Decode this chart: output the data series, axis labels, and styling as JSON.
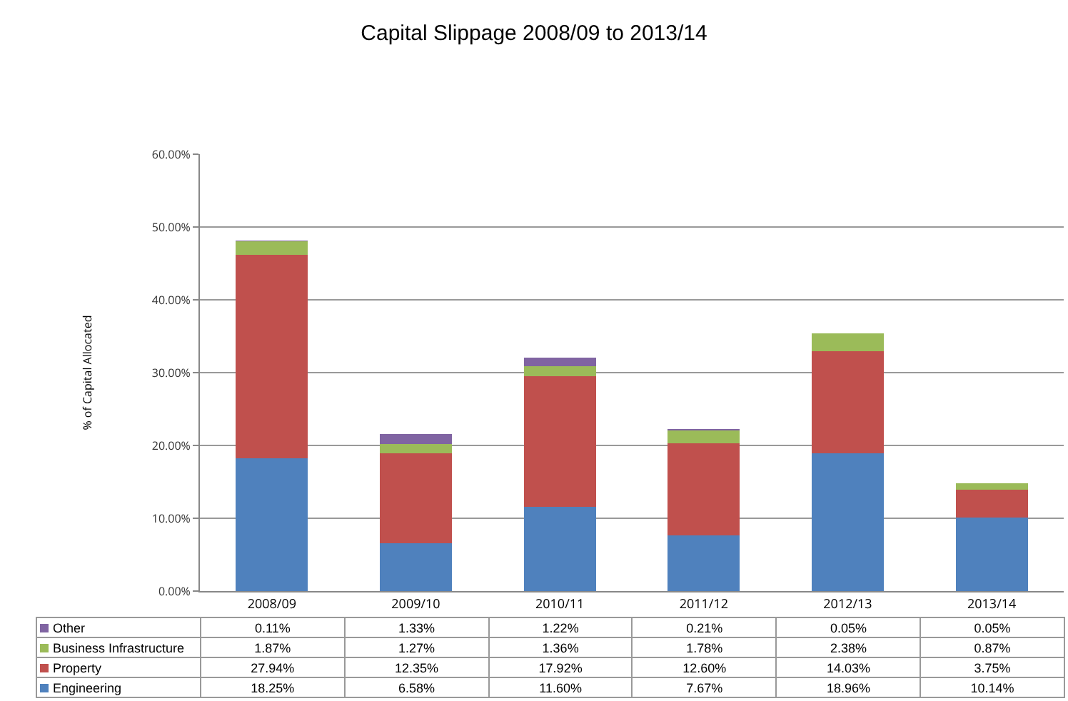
{
  "chart_data": {
    "type": "bar",
    "title": "Capital Slippage 2008/09 to 2013/14",
    "ylabel": "% of Capital Allocated",
    "categories": [
      "2008/09",
      "2009/10",
      "2010/11",
      "2011/12",
      "2012/13",
      "2013/14"
    ],
    "stacked": true,
    "series": [
      {
        "name": "Engineering",
        "color": "#4f81bd",
        "values": [
          18.25,
          6.58,
          11.6,
          7.67,
          18.96,
          10.14
        ],
        "value_labels": [
          "18.25%",
          "6.58%",
          "11.60%",
          "7.67%",
          "18.96%",
          "10.14%"
        ]
      },
      {
        "name": "Property",
        "color": "#c0504d",
        "values": [
          27.94,
          12.35,
          17.92,
          12.6,
          14.03,
          3.75
        ],
        "value_labels": [
          "27.94%",
          "12.35%",
          "17.92%",
          "12.60%",
          "14.03%",
          "3.75%"
        ]
      },
      {
        "name": "Business Infrastructure",
        "color": "#9bbb59",
        "values": [
          1.87,
          1.27,
          1.36,
          1.78,
          2.38,
          0.87
        ],
        "value_labels": [
          "1.87%",
          "1.27%",
          "1.36%",
          "1.78%",
          "2.38%",
          "0.87%"
        ]
      },
      {
        "name": "Other",
        "color": "#8064a2",
        "values": [
          0.11,
          1.33,
          1.22,
          0.21,
          0.05,
          0.05
        ],
        "value_labels": [
          "0.11%",
          "1.33%",
          "1.22%",
          "0.21%",
          "0.05%",
          "0.05%"
        ]
      }
    ],
    "ylim": [
      0,
      60
    ],
    "yticks": [
      {
        "value": 0,
        "label": "0.00%"
      },
      {
        "value": 10,
        "label": "10.00%"
      },
      {
        "value": 20,
        "label": "20.00%"
      },
      {
        "value": 30,
        "label": "30.00%"
      },
      {
        "value": 40,
        "label": "40.00%"
      },
      {
        "value": 50,
        "label": "50.00%"
      },
      {
        "value": 60,
        "label": "60.00%"
      }
    ],
    "grid": true,
    "legend": "bottom"
  }
}
